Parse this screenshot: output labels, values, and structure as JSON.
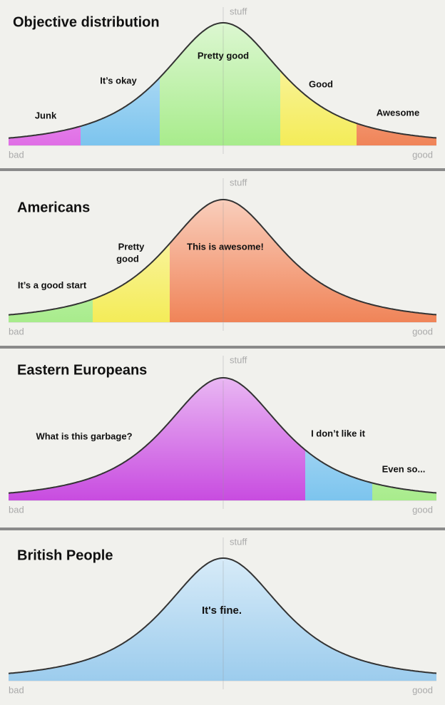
{
  "panels": [
    {
      "title": "Objective distribution",
      "y_axis": "stuff",
      "x_min": "bad",
      "x_max": "good",
      "regions": [
        {
          "label": "Junk",
          "color": "#e06ee6"
        },
        {
          "label": "It’s okay",
          "color": "#7cc4ee"
        },
        {
          "label": "Pretty good",
          "color": "#a8ec8c"
        },
        {
          "label": "Good",
          "color": "#f4ec58"
        },
        {
          "label": "Awesome",
          "color": "#f08458"
        }
      ]
    },
    {
      "title": "Americans",
      "y_axis": "stuff",
      "x_min": "bad",
      "x_max": "good",
      "regions": [
        {
          "label": "It’s a good start",
          "color": "#a8ec8c"
        },
        {
          "label": [
            "Pretty",
            "good"
          ],
          "color": "#f4ec58"
        },
        {
          "label": "This is awesome!",
          "color": "#f08458"
        }
      ]
    },
    {
      "title": "Eastern Europeans",
      "y_axis": "stuff",
      "x_min": "bad",
      "x_max": "good",
      "regions": [
        {
          "label": "What is this garbage?",
          "color": "#c84ce0"
        },
        {
          "label": "I don’t like it",
          "color": "#7cc4ee"
        },
        {
          "label": "Even so...",
          "color": "#a8ec8c"
        }
      ]
    },
    {
      "title": "British People",
      "y_axis": "stuff",
      "x_min": "bad",
      "x_max": "good",
      "regions": [
        {
          "label": "It's fine.",
          "color": "#9ccced"
        }
      ]
    }
  ]
}
